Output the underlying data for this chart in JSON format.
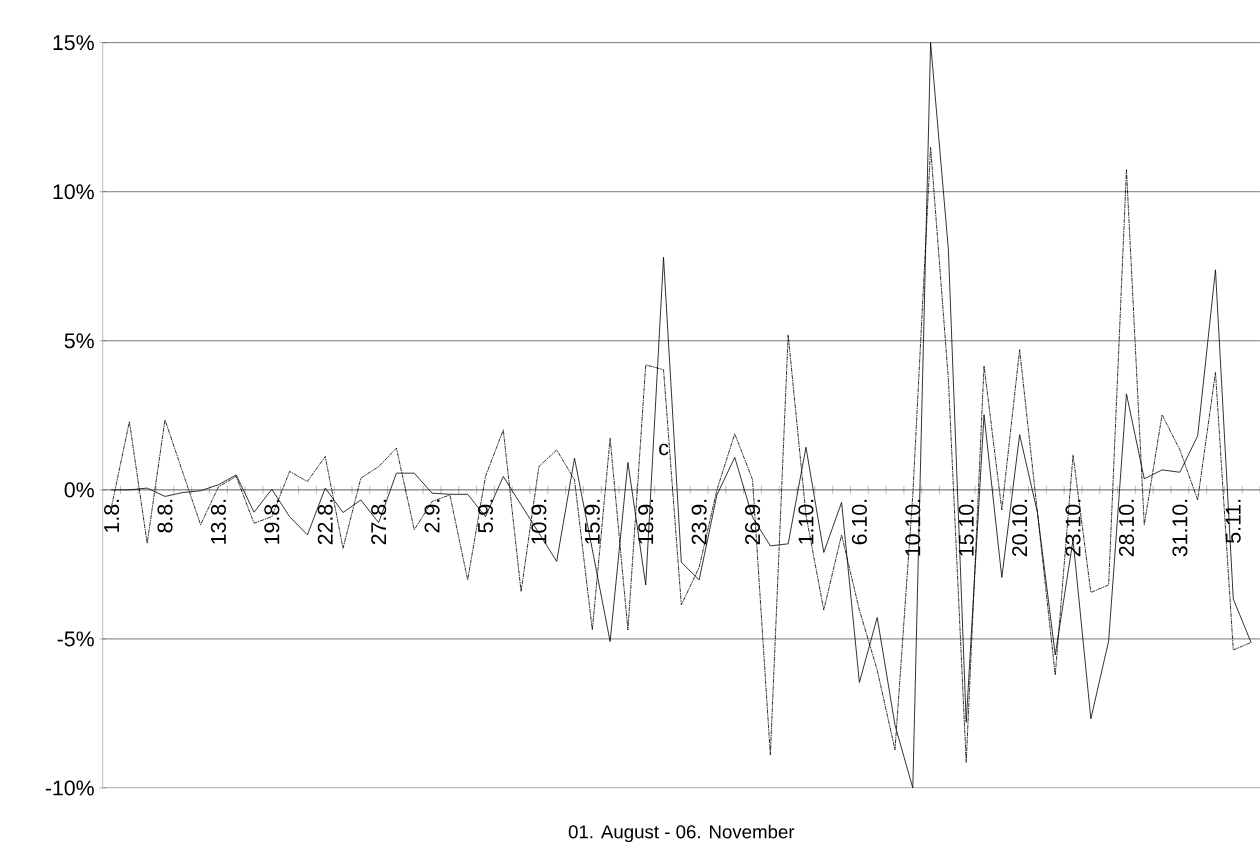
{
  "chart_data": {
    "type": "line",
    "xlabel": "01. August - 06. November",
    "categories": [
      "1.8.",
      null,
      null,
      "8.8.",
      null,
      null,
      "13.8.",
      null,
      null,
      "19.8.",
      null,
      null,
      "22.8.",
      null,
      null,
      "27.8.",
      null,
      null,
      "2.9.",
      null,
      null,
      "5.9.",
      null,
      null,
      "10.9.",
      null,
      null,
      "15.9.",
      null,
      null,
      "18.9.",
      null,
      null,
      "23.9.",
      null,
      null,
      "26.9.",
      null,
      null,
      "1.10.",
      null,
      null,
      "6.10.",
      null,
      null,
      "10.10.",
      null,
      null,
      "15.10.",
      null,
      null,
      "20.10.",
      null,
      null,
      "23.10.",
      null,
      null,
      "28.10.",
      null,
      null,
      "31.10.",
      null,
      null,
      "5.11.",
      null
    ],
    "series": [
      {
        "color": "#000000",
        "line_style": "dashdot",
        "values": [
          -0.56,
          2.29,
          -1.79,
          2.35,
          0.58,
          -1.17,
          0.1,
          0.45,
          -1.12,
          -0.9,
          0.62,
          0.28,
          1.12,
          -1.96,
          0.39,
          0.78,
          1.4,
          -1.34,
          -0.39,
          -0.17,
          -3.02,
          0.45,
          2.01,
          -3.41,
          0.78,
          1.34,
          0.34,
          -4.7,
          1.73,
          -4.7,
          4.19,
          4.03,
          -3.86,
          -2.6,
          0.0,
          1.88,
          0.34,
          -8.89,
          5.2,
          -0.84,
          -4.03,
          -1.51,
          -4.03,
          -6.04,
          -8.72,
          -0.17,
          11.49,
          3.69,
          -9.14,
          4.16,
          -0.67,
          4.7,
          -0.76,
          -6.21,
          1.17,
          -3.44,
          -3.19,
          10.74,
          -1.17,
          2.52,
          1.34,
          -0.34,
          3.94,
          -5.37,
          -5.12
        ]
      },
      {
        "color": "#000000",
        "line_style": "solid",
        "values": [
          0.0,
          0.0,
          0.06,
          -0.22,
          -0.09,
          -0.03,
          0.17,
          0.5,
          -0.75,
          0.02,
          -0.9,
          -1.51,
          0.06,
          -0.76,
          -0.34,
          -1.1,
          0.56,
          0.56,
          -0.11,
          -0.15,
          -0.15,
          -0.9,
          0.45,
          -0.5,
          -1.45,
          -2.4,
          1.06,
          -2.0,
          -5.09,
          0.92,
          -3.19,
          7.8,
          -2.43,
          -3.02,
          -0.17,
          1.09,
          -0.92,
          -1.88,
          -1.81,
          1.43,
          -2.1,
          -0.42,
          -6.46,
          -4.28,
          -7.89,
          -10.0,
          15.0,
          8.05,
          -7.8,
          2.52,
          -2.94,
          1.85,
          -0.76,
          -5.54,
          -1.68,
          -7.68,
          -5.07,
          3.22,
          0.37,
          0.67,
          0.59,
          1.81,
          7.38,
          -3.66,
          -5.12
        ]
      }
    ],
    "ylim": [
      -10,
      15
    ],
    "yticks": [
      {
        "value": -10,
        "label": "-10%"
      },
      {
        "value": -5,
        "label": "-5%"
      },
      {
        "value": 0,
        "label": "0%"
      },
      {
        "value": 5,
        "label": "5%"
      },
      {
        "value": 10,
        "label": "10%"
      },
      {
        "value": 15,
        "label": "15%"
      }
    ],
    "grid": "y",
    "annotations": [
      "c"
    ]
  }
}
